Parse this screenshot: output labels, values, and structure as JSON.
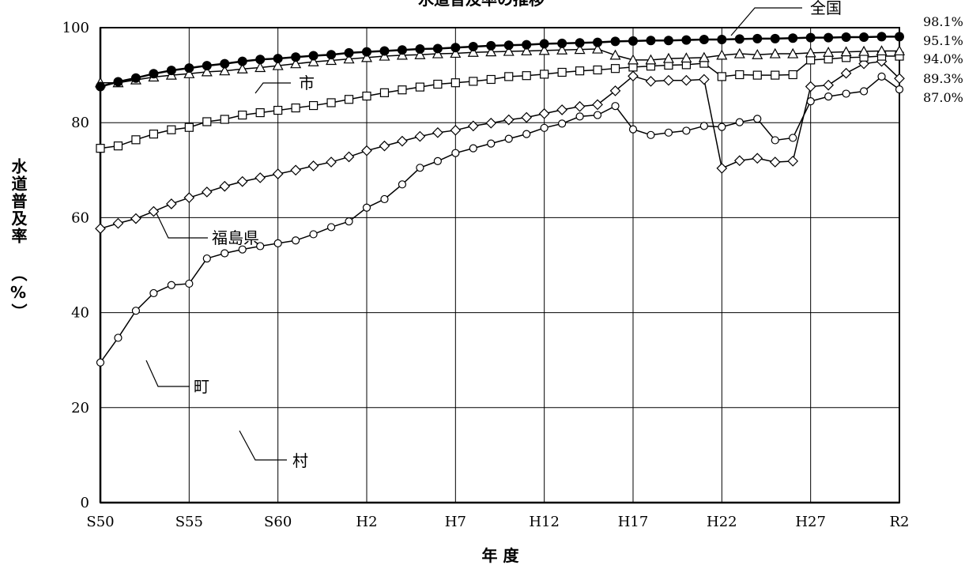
{
  "chart_data": {
    "type": "line",
    "title": "水道普及率の推移",
    "xlabel": "年 度",
    "ylabel": "水道普及率 （%）",
    "ylim": [
      0,
      100
    ],
    "yticks": [
      "0",
      "20",
      "40",
      "60",
      "80",
      "100"
    ],
    "xticks": [
      "S50",
      "S55",
      "S60",
      "H2",
      "H7",
      "H12",
      "H17",
      "H22",
      "H27",
      "R2"
    ],
    "grid": true,
    "x": [
      "S50",
      "S51",
      "S52",
      "S53",
      "S54",
      "S55",
      "S56",
      "S57",
      "S58",
      "S59",
      "S60",
      "S61",
      "S62",
      "S63",
      "H1",
      "H2",
      "H3",
      "H4",
      "H5",
      "H6",
      "H7",
      "H8",
      "H9",
      "H10",
      "H11",
      "H12",
      "H13",
      "H14",
      "H15",
      "H16",
      "H17",
      "H18",
      "H19",
      "H20",
      "H21",
      "H22",
      "H23",
      "H24",
      "H25",
      "H26",
      "H27",
      "H28",
      "H29",
      "H30",
      "R1",
      "R2"
    ],
    "series": [
      {
        "name": "全国",
        "marker": "filled-circle",
        "end_label": "98.1%",
        "values": [
          87.6,
          88.6,
          89.4,
          90.3,
          91.0,
          91.5,
          92.0,
          92.4,
          92.9,
          93.3,
          93.5,
          93.8,
          94.1,
          94.3,
          94.7,
          94.9,
          95.1,
          95.3,
          95.5,
          95.6,
          95.8,
          96.0,
          96.2,
          96.3,
          96.4,
          96.6,
          96.7,
          96.8,
          96.9,
          97.1,
          97.2,
          97.3,
          97.3,
          97.4,
          97.5,
          97.5,
          97.6,
          97.7,
          97.7,
          97.8,
          97.9,
          97.9,
          98.0,
          98.0,
          98.1,
          98.1
        ]
      },
      {
        "name": "市",
        "marker": "triangle",
        "end_label": "95.1%",
        "values": [
          88.4,
          88.4,
          89.0,
          89.6,
          90.0,
          90.3,
          90.7,
          90.9,
          91.3,
          91.6,
          92.0,
          92.4,
          92.8,
          93.1,
          93.4,
          93.7,
          94.0,
          94.2,
          94.3,
          94.5,
          94.6,
          94.8,
          94.9,
          95.0,
          95.1,
          95.2,
          95.3,
          95.4,
          95.5,
          94.2,
          93.2,
          93.2,
          93.5,
          93.6,
          93.7,
          94.2,
          94.5,
          94.3,
          94.5,
          94.5,
          94.7,
          94.8,
          94.9,
          95.0,
          95.1,
          95.1
        ]
      },
      {
        "name": "福島県",
        "marker": "square",
        "end_label": "94.0%",
        "values": [
          74.6,
          75.1,
          76.4,
          77.6,
          78.5,
          79.0,
          80.2,
          80.7,
          81.6,
          82.1,
          82.6,
          83.1,
          83.6,
          84.2,
          84.9,
          85.6,
          86.3,
          86.9,
          87.5,
          88.1,
          88.4,
          88.7,
          89.1,
          89.7,
          89.9,
          90.2,
          90.6,
          90.9,
          91.1,
          91.4,
          91.7,
          91.9,
          92.1,
          92.2,
          92.5,
          89.7,
          90.1,
          90.0,
          90.0,
          90.1,
          93.2,
          93.4,
          93.7,
          93.8,
          94.0,
          94.0
        ]
      },
      {
        "name": "町",
        "marker": "diamond",
        "end_label": "89.3%",
        "values": [
          57.7,
          58.8,
          59.8,
          61.3,
          62.9,
          64.2,
          65.4,
          66.6,
          67.6,
          68.4,
          69.2,
          70.0,
          70.9,
          71.7,
          72.8,
          74.1,
          75.1,
          76.1,
          77.1,
          77.9,
          78.4,
          79.3,
          79.9,
          80.6,
          81.1,
          81.9,
          82.7,
          83.4,
          83.8,
          86.7,
          89.8,
          88.7,
          88.9,
          88.9,
          89.1,
          70.4,
          72.0,
          72.5,
          71.7,
          71.9,
          87.6,
          87.9,
          90.4,
          92.4,
          92.9,
          89.3
        ]
      },
      {
        "name": "村",
        "marker": "circle",
        "end_label": "87.0%",
        "values": [
          29.5,
          34.7,
          40.4,
          44.1,
          45.8,
          46.1,
          51.4,
          52.5,
          53.3,
          54.0,
          54.6,
          55.2,
          56.5,
          58.0,
          59.2,
          62.1,
          63.9,
          67.0,
          70.5,
          71.9,
          73.6,
          74.6,
          75.6,
          76.6,
          77.6,
          78.9,
          79.8,
          81.3,
          81.6,
          83.5,
          78.6,
          77.4,
          77.9,
          78.3,
          79.3,
          79.1,
          80.1,
          80.8,
          76.3,
          76.8,
          84.5,
          85.5,
          86.1,
          86.6,
          89.7,
          87.0
        ]
      }
    ]
  }
}
